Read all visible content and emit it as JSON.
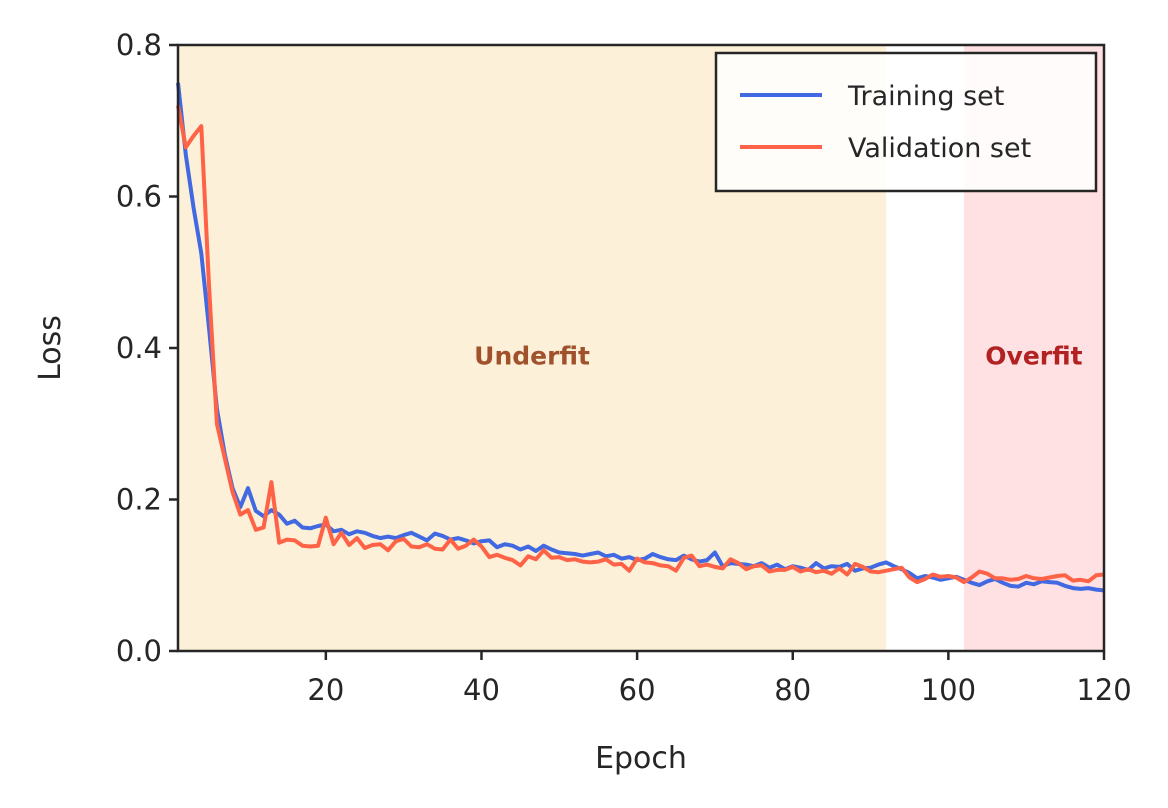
{
  "chart_data": {
    "type": "line",
    "xlabel": "Epoch",
    "ylabel": "Loss",
    "xlim": [
      1,
      120
    ],
    "ylim": [
      0,
      0.8
    ],
    "x_ticks": [
      20,
      40,
      60,
      80,
      100,
      120
    ],
    "y_ticks": [
      "0.0",
      "0.2",
      "0.4",
      "0.6",
      "0.8"
    ],
    "grid": false,
    "legend_position": "top-right",
    "regions": [
      {
        "label": "Underfit",
        "x_start": 1,
        "x_end": 92,
        "color": "#fdf0d8",
        "label_color": "#a0522d"
      },
      {
        "label": "Overfit",
        "x_start": 102,
        "x_end": 120,
        "color": "#ffe0e3",
        "label_color": "#b22222"
      }
    ],
    "series": [
      {
        "name": "Training set",
        "color": "#4169e1",
        "x": [
          1,
          2,
          3,
          4,
          5,
          6,
          7,
          8,
          9,
          10,
          11,
          12,
          13,
          14,
          15,
          16,
          17,
          18,
          19,
          20,
          21,
          22,
          23,
          24,
          25,
          26,
          27,
          28,
          29,
          30,
          31,
          32,
          33,
          34,
          35,
          36,
          37,
          38,
          39,
          40,
          41,
          42,
          43,
          44,
          45,
          46,
          47,
          48,
          49,
          50,
          51,
          52,
          53,
          54,
          55,
          56,
          57,
          58,
          59,
          60,
          61,
          62,
          63,
          64,
          65,
          66,
          67,
          68,
          69,
          70,
          71,
          72,
          73,
          74,
          75,
          76,
          77,
          78,
          79,
          80,
          81,
          82,
          83,
          84,
          85,
          86,
          87,
          88,
          89,
          90,
          91,
          92,
          93,
          94,
          95,
          96,
          97,
          98,
          99,
          100,
          101,
          102,
          103,
          104,
          105,
          106,
          107,
          108,
          109,
          110,
          111,
          112,
          113,
          114,
          115,
          116,
          117,
          118,
          119,
          120
        ],
        "y": [
          0.75,
          0.655,
          0.585,
          0.525,
          0.425,
          0.32,
          0.26,
          0.215,
          0.19,
          0.215,
          0.185,
          0.178,
          0.186,
          0.18,
          0.168,
          0.172,
          0.163,
          0.162,
          0.165,
          0.167,
          0.158,
          0.16,
          0.154,
          0.158,
          0.156,
          0.152,
          0.149,
          0.151,
          0.149,
          0.153,
          0.156,
          0.151,
          0.146,
          0.155,
          0.152,
          0.147,
          0.149,
          0.146,
          0.142,
          0.145,
          0.146,
          0.137,
          0.141,
          0.139,
          0.134,
          0.138,
          0.132,
          0.139,
          0.134,
          0.13,
          0.129,
          0.128,
          0.126,
          0.128,
          0.13,
          0.125,
          0.127,
          0.122,
          0.124,
          0.12,
          0.122,
          0.128,
          0.124,
          0.121,
          0.12,
          0.126,
          0.121,
          0.118,
          0.12,
          0.13,
          0.112,
          0.116,
          0.115,
          0.114,
          0.112,
          0.116,
          0.11,
          0.114,
          0.108,
          0.112,
          0.11,
          0.107,
          0.116,
          0.109,
          0.112,
          0.111,
          0.115,
          0.106,
          0.109,
          0.11,
          0.114,
          0.117,
          0.112,
          0.108,
          0.103,
          0.096,
          0.099,
          0.097,
          0.094,
          0.096,
          0.098,
          0.094,
          0.09,
          0.087,
          0.092,
          0.095,
          0.09,
          0.086,
          0.085,
          0.09,
          0.088,
          0.092,
          0.091,
          0.09,
          0.086,
          0.083,
          0.082,
          0.083,
          0.081,
          0.08
        ]
      },
      {
        "name": "Validation set",
        "color": "#ff6347",
        "x": [
          1,
          2,
          3,
          4,
          5,
          6,
          7,
          8,
          9,
          10,
          11,
          12,
          13,
          14,
          15,
          16,
          17,
          18,
          19,
          20,
          21,
          22,
          23,
          24,
          25,
          26,
          27,
          28,
          29,
          30,
          31,
          32,
          33,
          34,
          35,
          36,
          37,
          38,
          39,
          40,
          41,
          42,
          43,
          44,
          45,
          46,
          47,
          48,
          49,
          50,
          51,
          52,
          53,
          54,
          55,
          56,
          57,
          58,
          59,
          60,
          61,
          62,
          63,
          64,
          65,
          66,
          67,
          68,
          69,
          70,
          71,
          72,
          73,
          74,
          75,
          76,
          77,
          78,
          79,
          80,
          81,
          82,
          83,
          84,
          85,
          86,
          87,
          88,
          89,
          90,
          91,
          92,
          93,
          94,
          95,
          96,
          97,
          98,
          99,
          100,
          101,
          102,
          103,
          104,
          105,
          106,
          107,
          108,
          109,
          110,
          111,
          112,
          113,
          114,
          115,
          116,
          117,
          118,
          119,
          120
        ],
        "y": [
          0.72,
          0.665,
          0.68,
          0.693,
          0.48,
          0.3,
          0.255,
          0.21,
          0.18,
          0.186,
          0.16,
          0.163,
          0.223,
          0.143,
          0.147,
          0.146,
          0.139,
          0.138,
          0.139,
          0.176,
          0.141,
          0.156,
          0.14,
          0.149,
          0.136,
          0.14,
          0.141,
          0.133,
          0.145,
          0.148,
          0.138,
          0.137,
          0.141,
          0.135,
          0.134,
          0.147,
          0.135,
          0.139,
          0.147,
          0.138,
          0.124,
          0.127,
          0.123,
          0.12,
          0.113,
          0.125,
          0.121,
          0.133,
          0.123,
          0.124,
          0.12,
          0.121,
          0.118,
          0.117,
          0.118,
          0.121,
          0.114,
          0.115,
          0.106,
          0.122,
          0.117,
          0.116,
          0.113,
          0.112,
          0.106,
          0.123,
          0.126,
          0.112,
          0.114,
          0.111,
          0.109,
          0.121,
          0.116,
          0.108,
          0.112,
          0.113,
          0.105,
          0.107,
          0.107,
          0.111,
          0.105,
          0.108,
          0.104,
          0.106,
          0.102,
          0.109,
          0.101,
          0.115,
          0.111,
          0.105,
          0.104,
          0.106,
          0.108,
          0.11,
          0.097,
          0.091,
          0.095,
          0.101,
          0.098,
          0.099,
          0.097,
          0.091,
          0.097,
          0.105,
          0.102,
          0.096,
          0.096,
          0.094,
          0.095,
          0.099,
          0.096,
          0.095,
          0.097,
          0.099,
          0.1,
          0.093,
          0.094,
          0.092,
          0.1,
          0.101
        ]
      }
    ]
  }
}
